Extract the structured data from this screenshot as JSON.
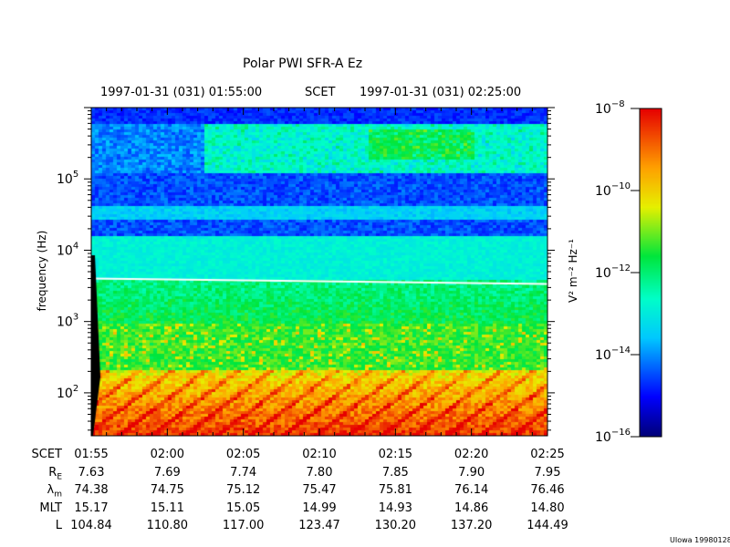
{
  "chart_data": {
    "type": "heatmap",
    "title": "Polar PWI SFR-A Ez",
    "start_time": "1997-01-31 (031) 01:55:00",
    "time_label": "SCET",
    "end_time": "1997-01-31 (031) 02:25:00",
    "ylabel": "frequency (Hz)",
    "yscale": "log",
    "ylim": [
      25,
      1000000
    ],
    "yticks": [
      {
        "value": 100,
        "base": "10",
        "exp": "2"
      },
      {
        "value": 1000,
        "base": "10",
        "exp": "3"
      },
      {
        "value": 10000,
        "base": "10",
        "exp": "4"
      },
      {
        "value": 100000,
        "base": "10",
        "exp": "5"
      }
    ],
    "colorbar": {
      "label": "V² m⁻² Hz⁻¹",
      "scale": "log",
      "range": [
        1e-16,
        1e-08
      ],
      "ticks": [
        {
          "value": 1e-08,
          "base": "10",
          "exp": "−8"
        },
        {
          "value": 1e-10,
          "base": "10",
          "exp": "−10"
        },
        {
          "value": 1e-12,
          "base": "10",
          "exp": "−12"
        },
        {
          "value": 1e-14,
          "base": "10",
          "exp": "−14"
        },
        {
          "value": 1e-16,
          "base": "10",
          "exp": "−16"
        }
      ]
    },
    "white_line_hz": 4000,
    "ephemeris": {
      "rows": [
        {
          "label": "SCET",
          "sub": "",
          "values": [
            "01:55",
            "02:00",
            "02:05",
            "02:10",
            "02:15",
            "02:20",
            "02:25"
          ]
        },
        {
          "label": "R",
          "sub": "E",
          "values": [
            "7.63",
            "7.69",
            "7.74",
            "7.80",
            "7.85",
            "7.90",
            "7.95"
          ]
        },
        {
          "label": "λ",
          "sub": "m",
          "values": [
            "74.38",
            "74.75",
            "75.12",
            "75.47",
            "75.81",
            "76.14",
            "76.46"
          ]
        },
        {
          "label": "MLT",
          "sub": "",
          "values": [
            "15.17",
            "15.11",
            "15.05",
            "14.99",
            "14.93",
            "14.86",
            "14.80"
          ]
        },
        {
          "label": "L",
          "sub": "",
          "values": [
            "104.84",
            "110.80",
            "117.00",
            "123.47",
            "130.20",
            "137.20",
            "144.49"
          ]
        }
      ]
    }
  },
  "credit": "UIowa 19980128"
}
